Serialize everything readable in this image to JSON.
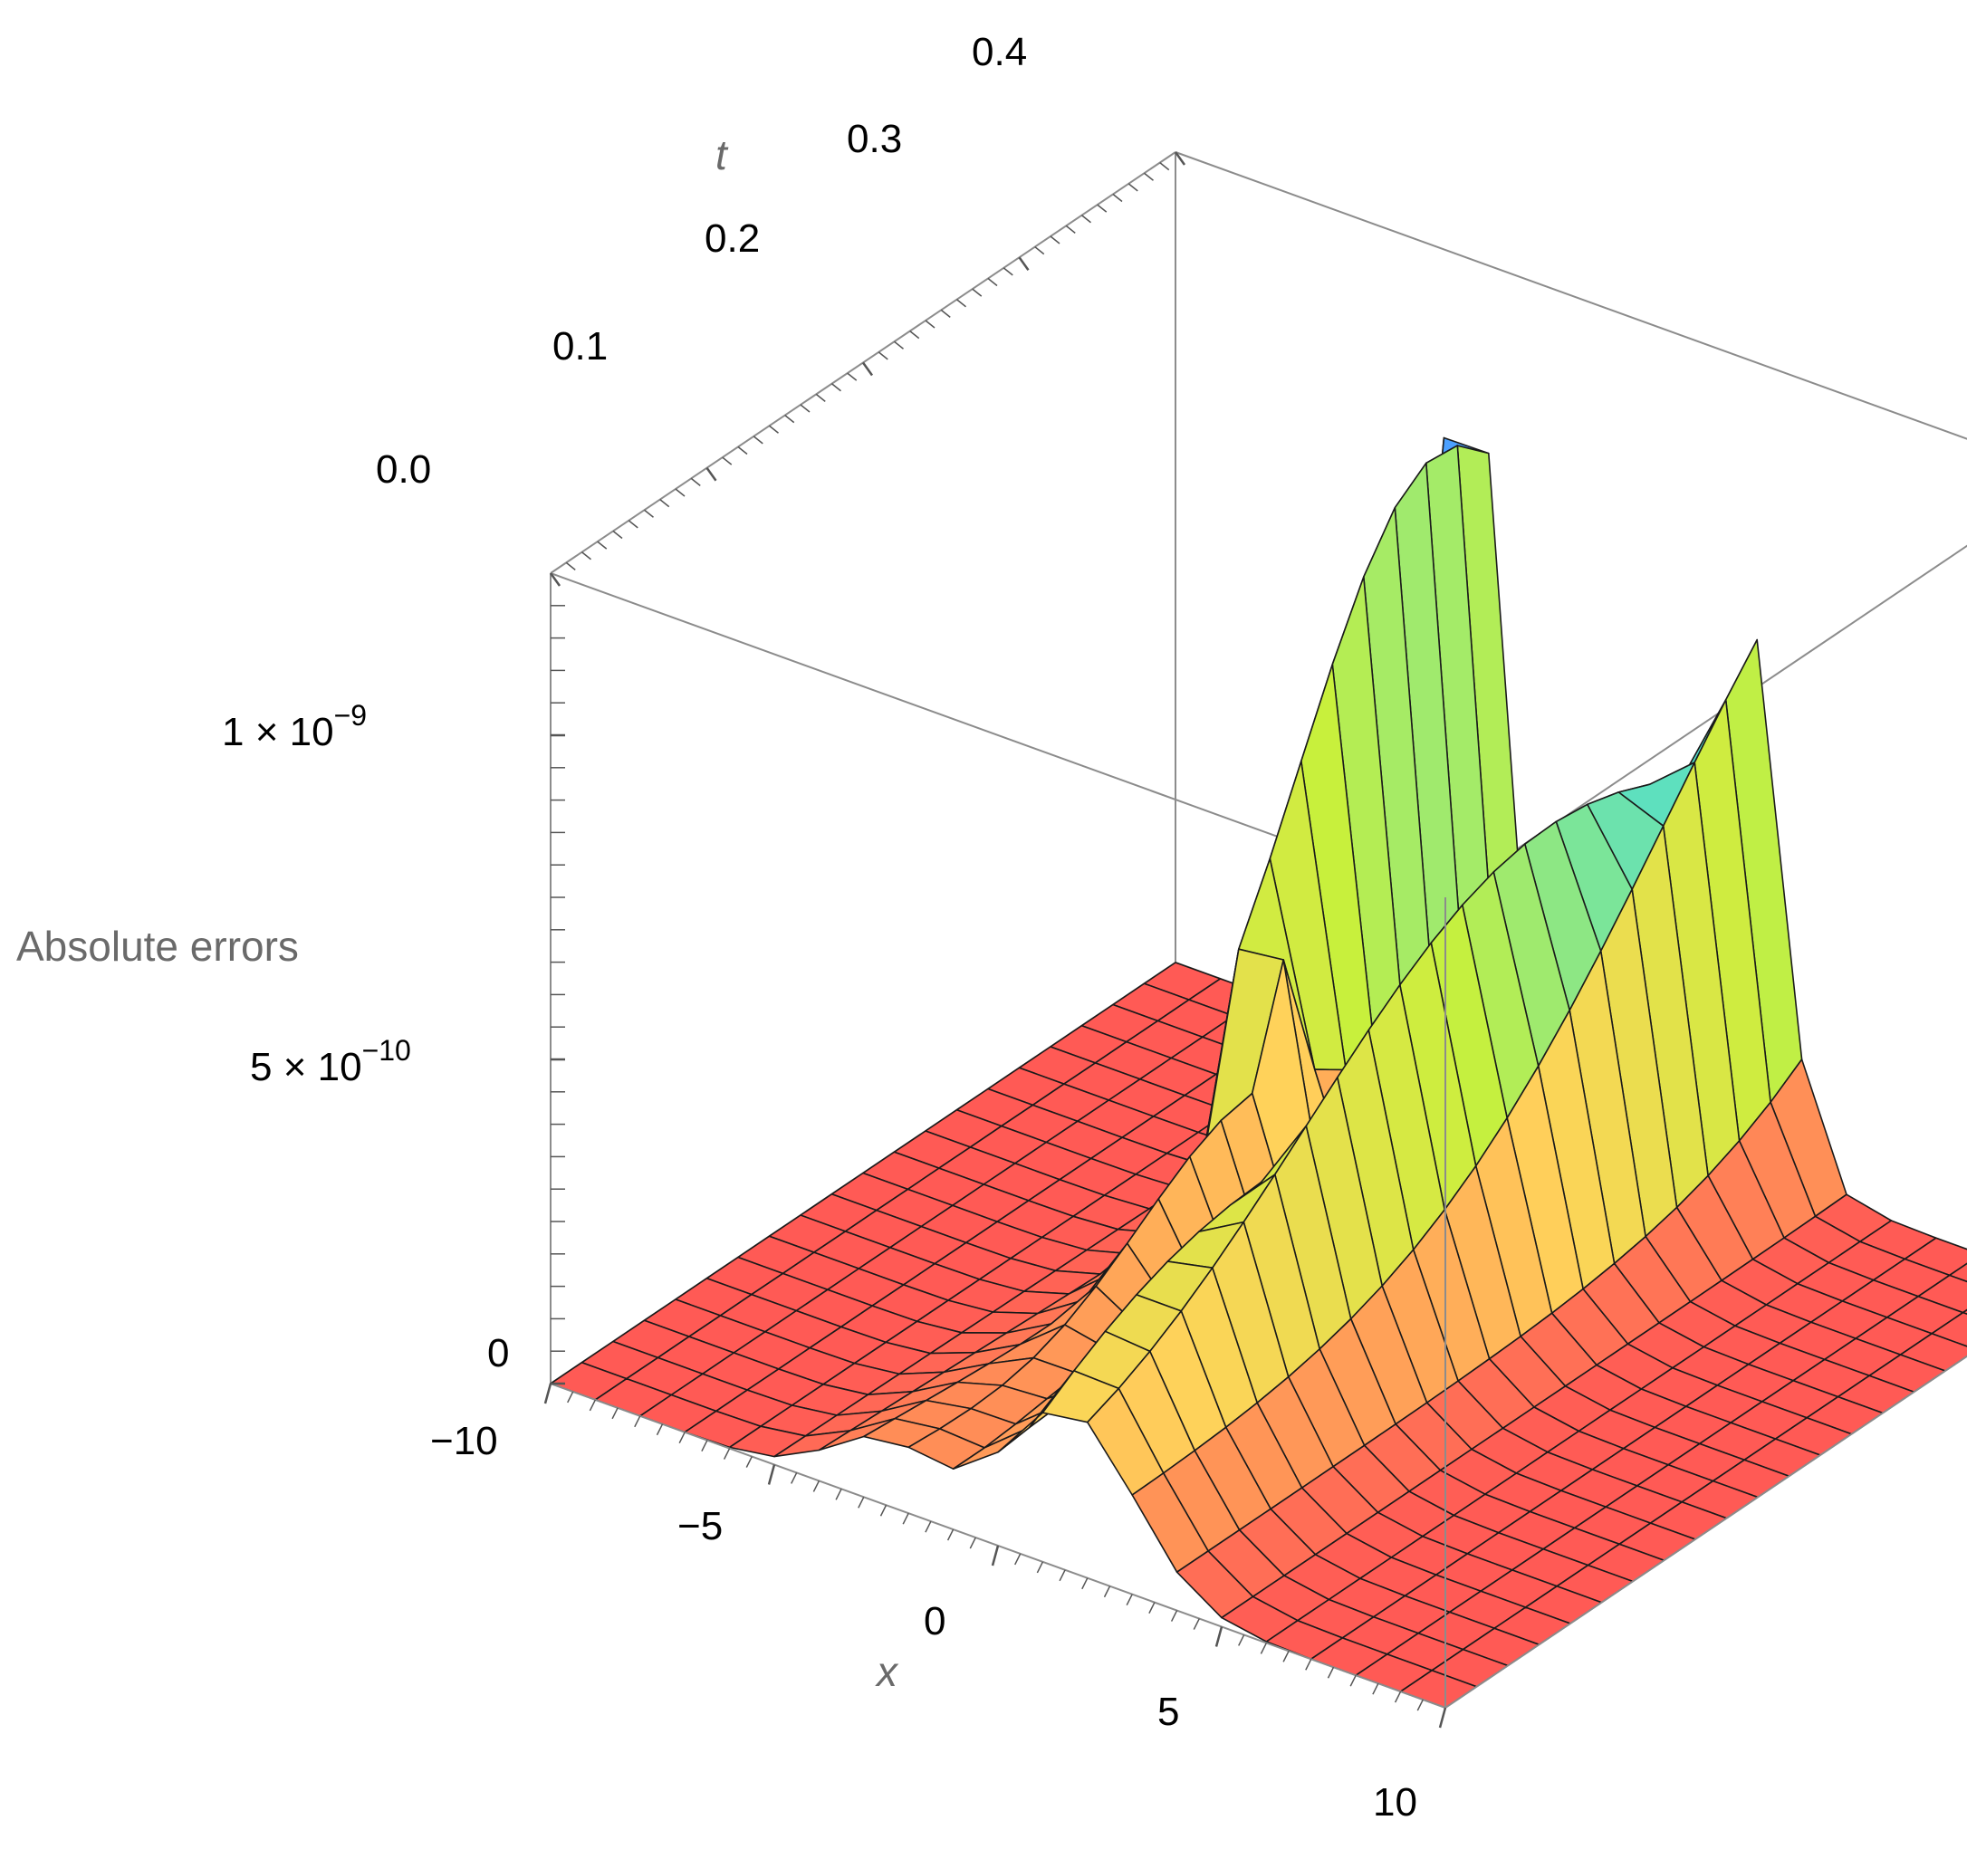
{
  "chart_data": {
    "type": "surface3d",
    "xlabel": "x",
    "ylabel": "t",
    "zlabel": "Absolute errors",
    "xlim": [
      -10,
      10
    ],
    "ylim": [
      0,
      0.4
    ],
    "zlim": [
      0,
      1.25e-09
    ],
    "x_ticks": [
      "−10",
      "−5",
      "0",
      "5",
      "10"
    ],
    "t_ticks": [
      "0.0",
      "0.1",
      "0.2",
      "0.3",
      "0.4"
    ],
    "z_ticks": [
      {
        "value": 0,
        "mantissa": "0",
        "exponent": ""
      },
      {
        "value": 5e-10,
        "mantissa": "5 × 10",
        "exponent": "−10"
      },
      {
        "value": 1e-09,
        "mantissa": "1 × 10",
        "exponent": "−9"
      }
    ],
    "box": true,
    "mesh": true,
    "grid_resolution": {
      "x": 21,
      "t": 21
    },
    "peak": {
      "x": 0.0,
      "t": 0.4,
      "z": 1.25e-09
    },
    "color_scheme": "rainbow-by-height",
    "base_color": "#ff5a55",
    "colors": {
      "low": "#ff5a55",
      "mid_low": "#ffd25a",
      "mid": "#c8f03c",
      "mid_high": "#28d8ff",
      "high": "#8a3cff",
      "top": "#ff1e64",
      "mesh_line": "#1a1a1a",
      "box_line": "#8c8c8c"
    }
  }
}
